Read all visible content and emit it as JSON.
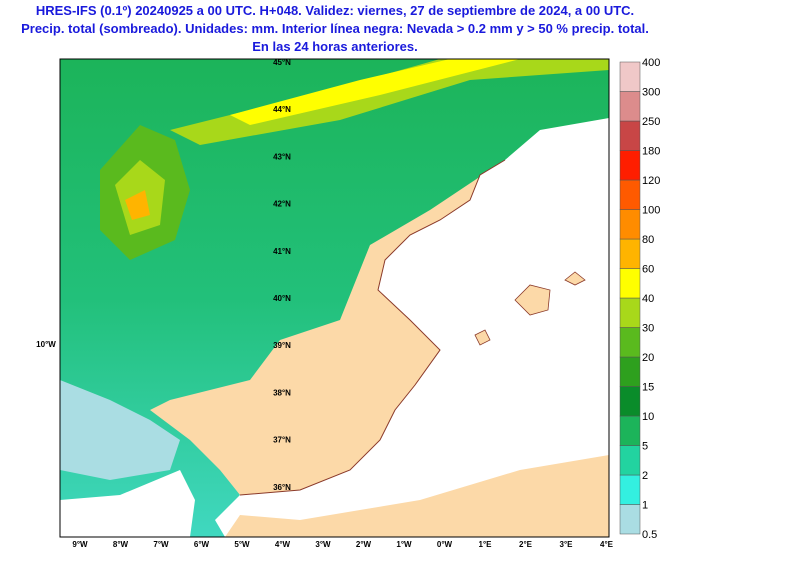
{
  "header": {
    "lines": [
      "HRES-IFS (0.1º) 20240925 a 00 UTC. H+048. Validez: viernes, 27 de septiembre de 2024, a 00 UTC.",
      "Precip. total (sombreado). Unidades: mm. Interior línea negra: Nevada > 0.2 mm y > 50 % precip. total.",
      "En las 24 horas anteriores."
    ]
  },
  "map": {
    "lat_labels": [
      "45°N",
      "44°N",
      "43°N",
      "42°N",
      "41°N",
      "40°N",
      "39°N",
      "38°N",
      "37°N",
      "36°N"
    ],
    "lon_labels": [
      "9°W",
      "8°W",
      "7°W",
      "6°W",
      "5°W",
      "4°W",
      "3°W",
      "2°W",
      "1°W",
      "0°W",
      "1°E",
      "2°E",
      "3°E",
      "4°E"
    ],
    "side_label": "10°W"
  },
  "colorbar": {
    "labels": [
      "0.5",
      "1",
      "2",
      "5",
      "10",
      "15",
      "20",
      "30",
      "40",
      "60",
      "80",
      "100",
      "120",
      "180",
      "250",
      "300",
      "400"
    ],
    "colors": [
      "#aadde3",
      "#33f0e0",
      "#22d3a0",
      "#1cb45a",
      "#0a8c2a",
      "#2ea01e",
      "#5aba1e",
      "#a8d81a",
      "#ffff00",
      "#ffb400",
      "#ff8c00",
      "#ff5a00",
      "#ff1e00",
      "#c84646",
      "#dc8c8c",
      "#f0c8c8"
    ]
  }
}
